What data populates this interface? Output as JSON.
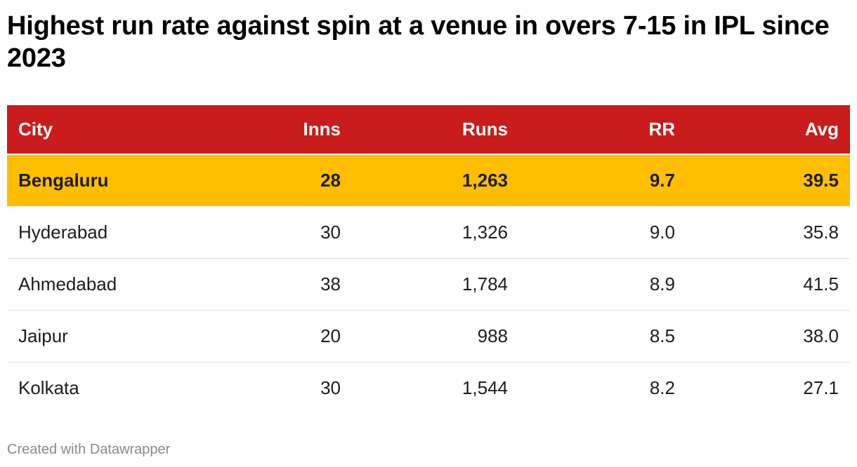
{
  "title": "Highest run rate against spin at a venue in overs 7-15 in IPL since 2023",
  "colors": {
    "header_bg": "#c91c1c",
    "header_text": "#ffffff",
    "highlight_bg": "#ffbf00",
    "row_bg": "#ffffff"
  },
  "chart_data": {
    "type": "table",
    "columns": [
      "City",
      "Inns",
      "Runs",
      "RR",
      "Avg"
    ],
    "rows": [
      {
        "cells": [
          "Bengaluru",
          "28",
          "1,263",
          "9.7",
          "39.5"
        ],
        "highlight": true
      },
      {
        "cells": [
          "Hyderabad",
          "30",
          "1,326",
          "9.0",
          "35.8"
        ],
        "highlight": false
      },
      {
        "cells": [
          "Ahmedabad",
          "38",
          "1,784",
          "8.9",
          "41.5"
        ],
        "highlight": false
      },
      {
        "cells": [
          "Jaipur",
          "20",
          "988",
          "8.5",
          "38.0"
        ],
        "highlight": false
      },
      {
        "cells": [
          "Kolkata",
          "30",
          "1,544",
          "8.2",
          "27.1"
        ],
        "highlight": false
      }
    ]
  },
  "footer": "Created with Datawrapper"
}
